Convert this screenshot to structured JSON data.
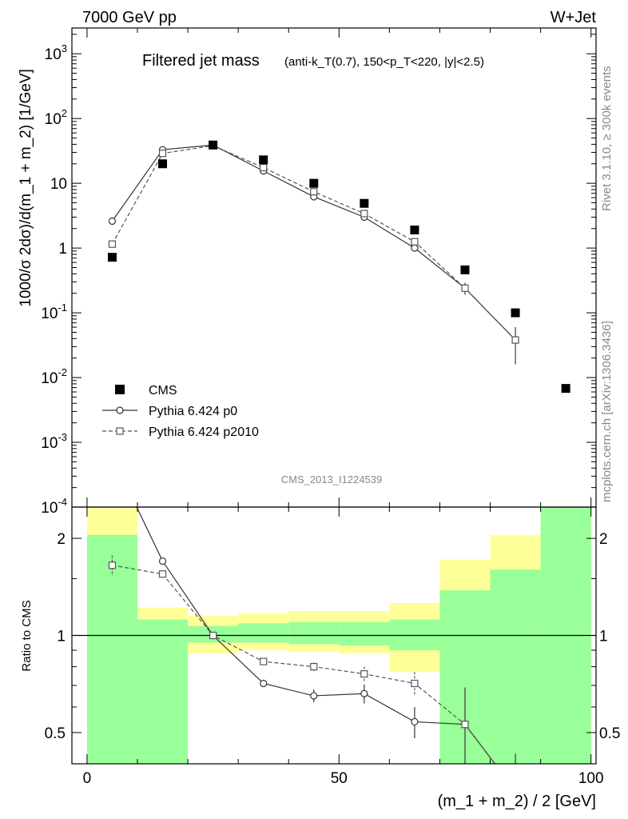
{
  "header": {
    "left": "7000 GeV pp",
    "right": "W+Jet"
  },
  "side": {
    "rivet": "Rivet 3.1.10, ≥ 300k events",
    "mcplots": "mcplots.cern.ch [arXiv:1306.3436]"
  },
  "watermark": "CMS_2013_I1224539",
  "chart_data": [
    {
      "type": "scatter",
      "panel": "main",
      "title": "Filtered jet mass",
      "subtitle": "(anti-k_T(0.7), 150<p_T<220, |y|<2.5)",
      "ylabel": "1000/σ 2dσ)/d(m_1 + m_2) [1/GeV]",
      "yscale": "log",
      "ylim": [
        0.0001,
        2500
      ],
      "xlim": [
        -3,
        101
      ],
      "ytick_labels": [
        "10^-4",
        "10^-3",
        "10^-2",
        "10^-1",
        "1",
        "10",
        "10^2",
        "10^3"
      ],
      "legend": [
        "CMS",
        "Pythia 6.424 p0",
        "Pythia 6.424 p2010"
      ],
      "legend_position": "bottom-left",
      "series": [
        {
          "name": "CMS",
          "style": "filled-square",
          "x": [
            5,
            15,
            25,
            35,
            45,
            55,
            65,
            75,
            85,
            95
          ],
          "y": [
            0.72,
            20,
            39,
            23,
            10,
            4.9,
            1.9,
            0.46,
            0.1,
            0.0068
          ]
        },
        {
          "name": "Pythia 6.424 p0",
          "style": "solid-circle",
          "x": [
            5,
            15,
            25,
            35,
            45,
            55,
            65,
            75,
            85
          ],
          "y": [
            2.6,
            33,
            39,
            15.5,
            6.2,
            3.0,
            1.0,
            0.24,
            0.038
          ],
          "yerr": [
            0,
            0,
            0,
            0,
            0,
            0,
            0,
            0.05,
            0.022
          ]
        },
        {
          "name": "Pythia 6.424 p2010",
          "style": "dashed-square",
          "x": [
            5,
            15,
            25,
            35,
            45,
            55,
            65,
            75,
            85
          ],
          "y": [
            1.15,
            29,
            38,
            17.5,
            7.4,
            3.4,
            1.25,
            0.24,
            0.038
          ],
          "yerr": [
            0,
            0,
            0,
            0,
            0,
            0,
            0.12,
            0.05,
            0.022
          ]
        }
      ]
    },
    {
      "type": "line",
      "panel": "ratio",
      "ylabel": "Ratio to CMS",
      "xlabel": "(m_1 + m_2) / 2 [GeV]",
      "yscale": "log",
      "ylim": [
        0.4,
        2.5
      ],
      "xlim": [
        -3,
        101
      ],
      "xtick_labels": [
        "0",
        "50",
        "100"
      ],
      "ytick_labels": [
        "0.5",
        "1",
        "2"
      ],
      "bands": {
        "edges": [
          0,
          10,
          20,
          30,
          40,
          50,
          60,
          70,
          80,
          90,
          100
        ],
        "green_low": [
          0.4,
          0.4,
          0.95,
          0.95,
          0.94,
          0.93,
          0.9,
          0.4,
          0.4,
          0.4
        ],
        "green_high": [
          2.05,
          1.12,
          1.07,
          1.09,
          1.1,
          1.1,
          1.12,
          1.38,
          1.6,
          2.5
        ],
        "yellow_low": [
          0.4,
          0.85,
          0.88,
          0.9,
          0.89,
          0.88,
          0.77,
          0.4,
          0.4,
          0.4
        ],
        "yellow_high": [
          2.5,
          1.22,
          1.15,
          1.17,
          1.19,
          1.19,
          1.26,
          1.72,
          2.05,
          2.5
        ]
      },
      "series": [
        {
          "name": "Pythia 6.424 p0",
          "style": "solid-circle",
          "x": [
            5,
            15,
            25,
            35,
            45,
            55,
            65,
            75,
            85
          ],
          "y": [
            3.6,
            1.7,
            1.0,
            0.71,
            0.65,
            0.66,
            0.54,
            0.53,
            0.33
          ],
          "yerr": [
            0,
            0,
            0,
            0.015,
            0.03,
            0.045,
            0.06,
            0.16,
            0.1
          ]
        },
        {
          "name": "Pythia 6.424 p2010",
          "style": "dashed-square",
          "x": [
            5,
            15,
            25,
            35,
            45,
            55,
            65,
            75,
            85
          ],
          "y": [
            1.65,
            1.55,
            1.0,
            0.83,
            0.8,
            0.76,
            0.71,
            0.53,
            0.33
          ],
          "yerr": [
            0.12,
            0,
            0,
            0,
            0.025,
            0.04,
            0.06,
            0.16,
            0.1
          ]
        }
      ]
    }
  ]
}
